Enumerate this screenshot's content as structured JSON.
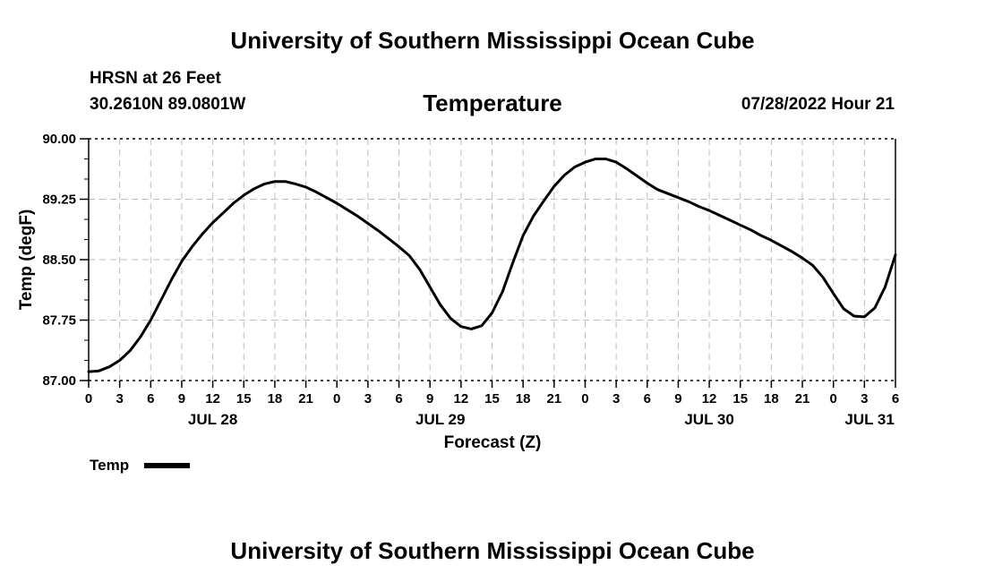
{
  "header": {
    "title": "University of Southern Mississippi Ocean Cube",
    "station": "HRSN at 26 Feet",
    "coordinates": "30.2610N  89.0801W",
    "datetime": "07/28/2022 Hour 21"
  },
  "footer": {
    "title": "University of Southern Mississippi Ocean Cube"
  },
  "chart_data": {
    "type": "line",
    "title": "Temperature",
    "xlabel": "Forecast (Z)",
    "ylabel": "Temp (degF)",
    "ylim": [
      87.0,
      90.0
    ],
    "yticks": [
      "87.00",
      "87.75",
      "88.50",
      "89.25",
      "90.00"
    ],
    "xlim_hours": [
      0,
      78
    ],
    "xtick_step_hours": 3,
    "xtick_labels": [
      "0",
      "3",
      "6",
      "9",
      "12",
      "15",
      "18",
      "21",
      "0",
      "3",
      "6",
      "9",
      "12",
      "15",
      "18",
      "21",
      "0",
      "3",
      "6",
      "9",
      "12",
      "15",
      "18",
      "21",
      "0",
      "3",
      "6"
    ],
    "day_labels": [
      {
        "label": "JUL 28",
        "hour": 12
      },
      {
        "label": "JUL 29",
        "hour": 34
      },
      {
        "label": "JUL 30",
        "hour": 60
      },
      {
        "label": "JUL 31",
        "hour": 75.5
      }
    ],
    "grid": true,
    "legend": "bottom-left",
    "series": [
      {
        "name": "Temp",
        "color": "#000000",
        "x": [
          0,
          1,
          2,
          3,
          4,
          5,
          6,
          7,
          8,
          9,
          10,
          11,
          12,
          13,
          14,
          15,
          16,
          17,
          18,
          19,
          20,
          21,
          22,
          23,
          24,
          25,
          26,
          27,
          28,
          29,
          30,
          31,
          32,
          33,
          34,
          35,
          36,
          37,
          38,
          39,
          40,
          41,
          42,
          43,
          44,
          45,
          46,
          47,
          48,
          49,
          50,
          51,
          52,
          53,
          54,
          55,
          56,
          57,
          58,
          59,
          60,
          61,
          62,
          63,
          64,
          65,
          66,
          67,
          68,
          69,
          70,
          71,
          72,
          73,
          74,
          75,
          76,
          77,
          78
        ],
        "values": [
          87.11,
          87.12,
          87.17,
          87.25,
          87.37,
          87.54,
          87.75,
          88.0,
          88.25,
          88.48,
          88.66,
          88.82,
          88.96,
          89.08,
          89.2,
          89.3,
          89.38,
          89.44,
          89.47,
          89.47,
          89.44,
          89.4,
          89.34,
          89.27,
          89.2,
          89.12,
          89.04,
          88.95,
          88.86,
          88.76,
          88.66,
          88.55,
          88.38,
          88.16,
          87.94,
          87.77,
          87.67,
          87.64,
          87.68,
          87.84,
          88.1,
          88.46,
          88.8,
          89.04,
          89.23,
          89.41,
          89.55,
          89.65,
          89.71,
          89.75,
          89.75,
          89.71,
          89.63,
          89.54,
          89.45,
          89.37,
          89.32,
          89.27,
          89.22,
          89.16,
          89.11,
          89.05,
          88.99,
          88.93,
          88.87,
          88.8,
          88.74,
          88.67,
          88.6,
          88.52,
          88.43,
          88.28,
          88.08,
          87.89,
          87.8,
          87.79,
          87.9,
          88.16,
          88.56
        ]
      }
    ]
  }
}
